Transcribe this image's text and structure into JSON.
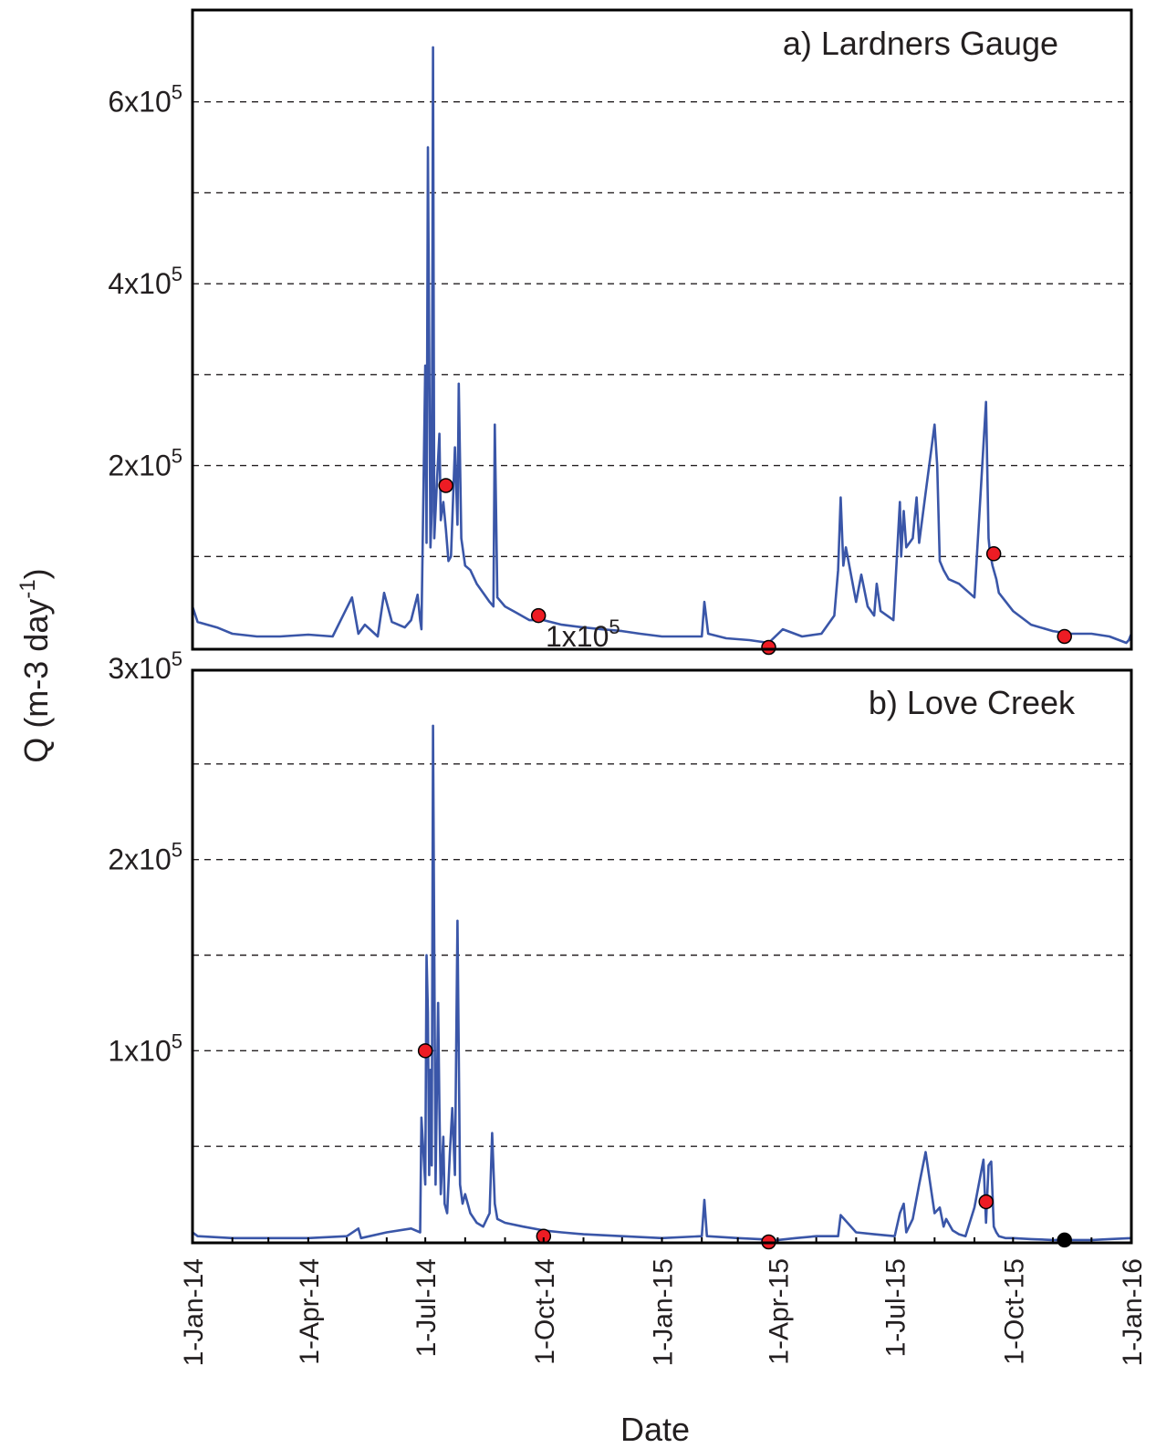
{
  "figure": {
    "ylabel": "Q (m-3 day-1)",
    "xlabel": "Date"
  },
  "chart_data": [
    {
      "type": "line",
      "title": "a) Lardners Gauge",
      "xlabel": "Date",
      "ylabel": "Q (m-3 day-1)",
      "ylim": [
        0,
        700000
      ],
      "xlim": [
        "2014-01-01",
        "2016-01-01"
      ],
      "grid": "horizontal dashed",
      "y_ticks": [
        {
          "value": 200000,
          "label": "2x10",
          "sup": "5"
        },
        {
          "value": 400000,
          "label": "4x10",
          "sup": "5"
        },
        {
          "value": 600000,
          "label": "6x10",
          "sup": "5"
        }
      ],
      "stray_tick_label": {
        "value": 0,
        "label": "1x10",
        "sup": "5"
      },
      "x_ticks": [
        "1-Jan-14",
        "1-Apr-14",
        "1-Jul-14",
        "1-Oct-14",
        "1-Jan-15",
        "1-Apr-15",
        "1-Jul-15",
        "1-Oct-15",
        "1-Jan-16"
      ],
      "series": [
        {
          "color": "#3a56a8",
          "x": [
            "2014-01-01",
            "2014-01-05",
            "2014-01-20",
            "2014-02-01",
            "2014-02-20",
            "2014-03-10",
            "2014-04-01",
            "2014-04-20",
            "2014-05-05",
            "2014-05-10",
            "2014-05-15",
            "2014-05-25",
            "2014-05-30",
            "2014-06-05",
            "2014-06-15",
            "2014-06-20",
            "2014-06-25",
            "2014-06-27",
            "2014-06-28",
            "2014-07-01",
            "2014-07-02",
            "2014-07-03",
            "2014-07-05",
            "2014-07-06",
            "2014-07-07",
            "2014-07-08",
            "2014-07-10",
            "2014-07-12",
            "2014-07-13",
            "2014-07-15",
            "2014-07-17",
            "2014-07-19",
            "2014-07-21",
            "2014-07-24",
            "2014-07-26",
            "2014-07-27",
            "2014-07-29",
            "2014-08-01",
            "2014-08-05",
            "2014-08-10",
            "2014-08-15",
            "2014-08-20",
            "2014-08-23",
            "2014-08-24",
            "2014-08-26",
            "2014-09-01",
            "2014-09-10",
            "2014-09-20",
            "2014-10-01",
            "2014-10-15",
            "2014-11-01",
            "2014-11-15",
            "2014-12-01",
            "2014-12-15",
            "2015-01-01",
            "2015-01-20",
            "2015-02-01",
            "2015-02-03",
            "2015-02-06",
            "2015-02-20",
            "2015-03-10",
            "2015-03-25",
            "2015-04-05",
            "2015-04-20",
            "2015-05-05",
            "2015-05-15",
            "2015-05-18",
            "2015-05-20",
            "2015-05-22",
            "2015-05-24",
            "2015-06-01",
            "2015-06-05",
            "2015-06-10",
            "2015-06-15",
            "2015-06-17",
            "2015-06-20",
            "2015-06-30",
            "2015-07-05",
            "2015-07-06",
            "2015-07-08",
            "2015-07-10",
            "2015-07-15",
            "2015-07-18",
            "2015-07-20",
            "2015-07-25",
            "2015-08-01",
            "2015-08-03",
            "2015-08-05",
            "2015-08-08",
            "2015-08-12",
            "2015-08-20",
            "2015-09-01",
            "2015-09-10",
            "2015-09-12",
            "2015-09-13",
            "2015-09-15",
            "2015-09-18",
            "2015-09-20",
            "2015-10-01",
            "2015-10-15",
            "2015-11-01",
            "2015-11-15",
            "2015-12-01",
            "2015-12-15",
            "2015-12-28",
            "2015-12-30",
            "2016-01-01"
          ],
          "values": [
            45000,
            28000,
            22000,
            15000,
            12000,
            12000,
            14000,
            12000,
            55000,
            15000,
            25000,
            12000,
            60000,
            28000,
            22000,
            30000,
            58000,
            30000,
            20000,
            310000,
            115000,
            550000,
            110000,
            150000,
            660000,
            120000,
            180000,
            235000,
            140000,
            160000,
            130000,
            95000,
            100000,
            220000,
            135000,
            290000,
            120000,
            90000,
            85000,
            70000,
            60000,
            50000,
            45000,
            245000,
            55000,
            45000,
            38000,
            30000,
            30000,
            25000,
            22000,
            20000,
            18000,
            15000,
            12000,
            12000,
            12000,
            50000,
            15000,
            10000,
            8000,
            5000,
            20000,
            12000,
            15000,
            35000,
            85000,
            165000,
            90000,
            110000,
            50000,
            80000,
            45000,
            35000,
            70000,
            40000,
            30000,
            160000,
            100000,
            150000,
            110000,
            120000,
            165000,
            115000,
            170000,
            245000,
            200000,
            95000,
            85000,
            75000,
            70000,
            55000,
            270000,
            120000,
            105000,
            90000,
            75000,
            60000,
            40000,
            25000,
            18000,
            15000,
            15000,
            12000,
            5000,
            8000,
            15000
          ]
        }
      ],
      "markers": [
        {
          "x": "2014-07-17",
          "y": 178000,
          "color": "#ed1c24"
        },
        {
          "x": "2014-09-27",
          "y": 35000,
          "color": "#ed1c24"
        },
        {
          "x": "2015-03-25",
          "y": 0,
          "color": "#ed1c24"
        },
        {
          "x": "2015-09-16",
          "y": 103000,
          "color": "#ed1c24"
        },
        {
          "x": "2015-11-10",
          "y": 12000,
          "color": "#ed1c24"
        }
      ]
    },
    {
      "type": "line",
      "title": "b) Love Creek",
      "xlabel": "Date",
      "ylabel": "Q (m-3 day-1)",
      "ylim": [
        0,
        300000
      ],
      "xlim": [
        "2014-01-01",
        "2016-01-01"
      ],
      "grid": "horizontal dashed",
      "y_ticks": [
        {
          "value": 100000,
          "label": "1x10",
          "sup": "5"
        },
        {
          "value": 200000,
          "label": "2x10",
          "sup": "5"
        },
        {
          "value": 300000,
          "label": "3x10",
          "sup": "5"
        }
      ],
      "x_ticks": [
        "1-Jan-14",
        "1-Apr-14",
        "1-Jul-14",
        "1-Oct-14",
        "1-Jan-15",
        "1-Apr-15",
        "1-Jul-15",
        "1-Oct-15",
        "1-Jan-16"
      ],
      "series": [
        {
          "color": "#3a56a8",
          "x": [
            "2014-01-01",
            "2014-01-05",
            "2014-02-01",
            "2014-03-01",
            "2014-04-01",
            "2014-05-01",
            "2014-05-10",
            "2014-05-12",
            "2014-06-01",
            "2014-06-20",
            "2014-06-27",
            "2014-06-28",
            "2014-07-01",
            "2014-07-02",
            "2014-07-03",
            "2014-07-04",
            "2014-07-05",
            "2014-07-06",
            "2014-07-07",
            "2014-07-08",
            "2014-07-09",
            "2014-07-11",
            "2014-07-12",
            "2014-07-13",
            "2014-07-15",
            "2014-07-16",
            "2014-07-18",
            "2014-07-20",
            "2014-07-22",
            "2014-07-24",
            "2014-07-26",
            "2014-07-28",
            "2014-07-30",
            "2014-08-01",
            "2014-08-05",
            "2014-08-10",
            "2014-08-15",
            "2014-08-20",
            "2014-08-22",
            "2014-08-24",
            "2014-08-26",
            "2014-09-01",
            "2014-09-15",
            "2014-10-01",
            "2014-10-15",
            "2014-11-01",
            "2014-12-01",
            "2015-01-01",
            "2015-02-01",
            "2015-02-03",
            "2015-02-05",
            "2015-03-01",
            "2015-04-01",
            "2015-04-15",
            "2015-05-01",
            "2015-05-18",
            "2015-05-20",
            "2015-06-01",
            "2015-06-15",
            "2015-07-01",
            "2015-07-05",
            "2015-07-08",
            "2015-07-10",
            "2015-07-15",
            "2015-07-20",
            "2015-07-25",
            "2015-08-01",
            "2015-08-05",
            "2015-08-08",
            "2015-08-10",
            "2015-08-15",
            "2015-08-20",
            "2015-08-25",
            "2015-09-01",
            "2015-09-08",
            "2015-09-10",
            "2015-09-12",
            "2015-09-14",
            "2015-09-16",
            "2015-09-18",
            "2015-09-20",
            "2015-09-25",
            "2015-10-01",
            "2015-10-15",
            "2015-11-01",
            "2015-11-15",
            "2015-12-01",
            "2015-12-15",
            "2016-01-01"
          ],
          "values": [
            5000,
            3000,
            2000,
            2000,
            2000,
            3000,
            7000,
            2000,
            5000,
            7000,
            5000,
            65000,
            30000,
            150000,
            120000,
            35000,
            90000,
            40000,
            270000,
            150000,
            30000,
            125000,
            70000,
            25000,
            55000,
            20000,
            15000,
            45000,
            70000,
            35000,
            168000,
            30000,
            20000,
            25000,
            15000,
            10000,
            8000,
            15000,
            57000,
            20000,
            12000,
            10000,
            8000,
            6000,
            5000,
            4000,
            3000,
            2000,
            3000,
            22000,
            3000,
            2000,
            1000,
            2000,
            3000,
            3000,
            14000,
            5000,
            4000,
            3000,
            15000,
            20000,
            5000,
            12000,
            30000,
            47000,
            15000,
            18000,
            8000,
            12000,
            6000,
            4000,
            3000,
            18000,
            43000,
            10000,
            40000,
            42000,
            8000,
            5000,
            3000,
            2000,
            2000,
            1500,
            1000,
            1000,
            1000,
            1500,
            2000
          ]
        }
      ],
      "markers": [
        {
          "x": "2014-07-01",
          "y": 100000,
          "color": "#ed1c24"
        },
        {
          "x": "2014-10-01",
          "y": 3000,
          "color": "#ed1c24"
        },
        {
          "x": "2015-03-25",
          "y": 0,
          "color": "#ed1c24"
        },
        {
          "x": "2015-09-10",
          "y": 21000,
          "color": "#ed1c24"
        },
        {
          "x": "2015-11-10",
          "y": 1000,
          "color": "#000000"
        }
      ]
    }
  ]
}
